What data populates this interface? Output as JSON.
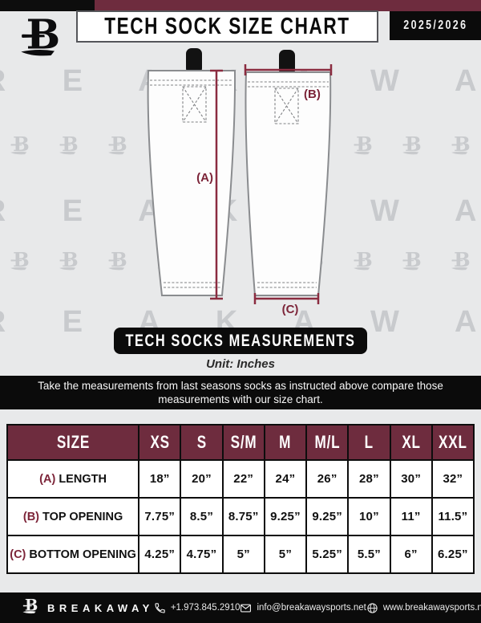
{
  "header": {
    "title": "TECH SOCK SIZE CHART",
    "season": "2025/2026"
  },
  "watermark": {
    "brand_spaced": "B R E A K A W A Y"
  },
  "diagram": {
    "label_a": "(A)",
    "label_b": "(B)",
    "label_c": "(C)"
  },
  "measurements_banner": "TECH SOCKS MEASUREMENTS",
  "unit_note": "Unit: Inches",
  "instruction": {
    "line1": "Take the measurements from last seasons socks as instructed above compare those",
    "line2": "measurements  with our size chart."
  },
  "size_table": {
    "columns": [
      "SIZE",
      "XS",
      "S",
      "S/M",
      "M",
      "M/L",
      "L",
      "XL",
      "XXL"
    ],
    "rows": [
      {
        "prefix": "(A)",
        "label": "LENGTH",
        "values": [
          "18”",
          "20”",
          "22”",
          "24”",
          "26”",
          "28”",
          "30”",
          "32”"
        ]
      },
      {
        "prefix": "(B)",
        "label": "TOP OPENING",
        "values": [
          "7.75”",
          "8.5”",
          "8.75”",
          "9.25”",
          "9.25”",
          "10”",
          "11”",
          "11.5”"
        ]
      },
      {
        "prefix": "(C)",
        "label": "BOTTOM OPENING",
        "values": [
          "4.25”",
          "4.75”",
          "5”",
          "5”",
          "5.25”",
          "5.5”",
          "6”",
          "6.25”"
        ]
      }
    ]
  },
  "footer": {
    "brand": "BREAKAWAY",
    "phone": "+1.973.845.2910",
    "email": "info@breakawaysports.net",
    "website": "www.breakawaysports.net"
  },
  "colors": {
    "maroon": "#6e2c3e",
    "accent": "#8b2c40",
    "background": "#e8e9ea",
    "watermark_gray": "#c8cacd",
    "black": "#0d0d0d"
  }
}
